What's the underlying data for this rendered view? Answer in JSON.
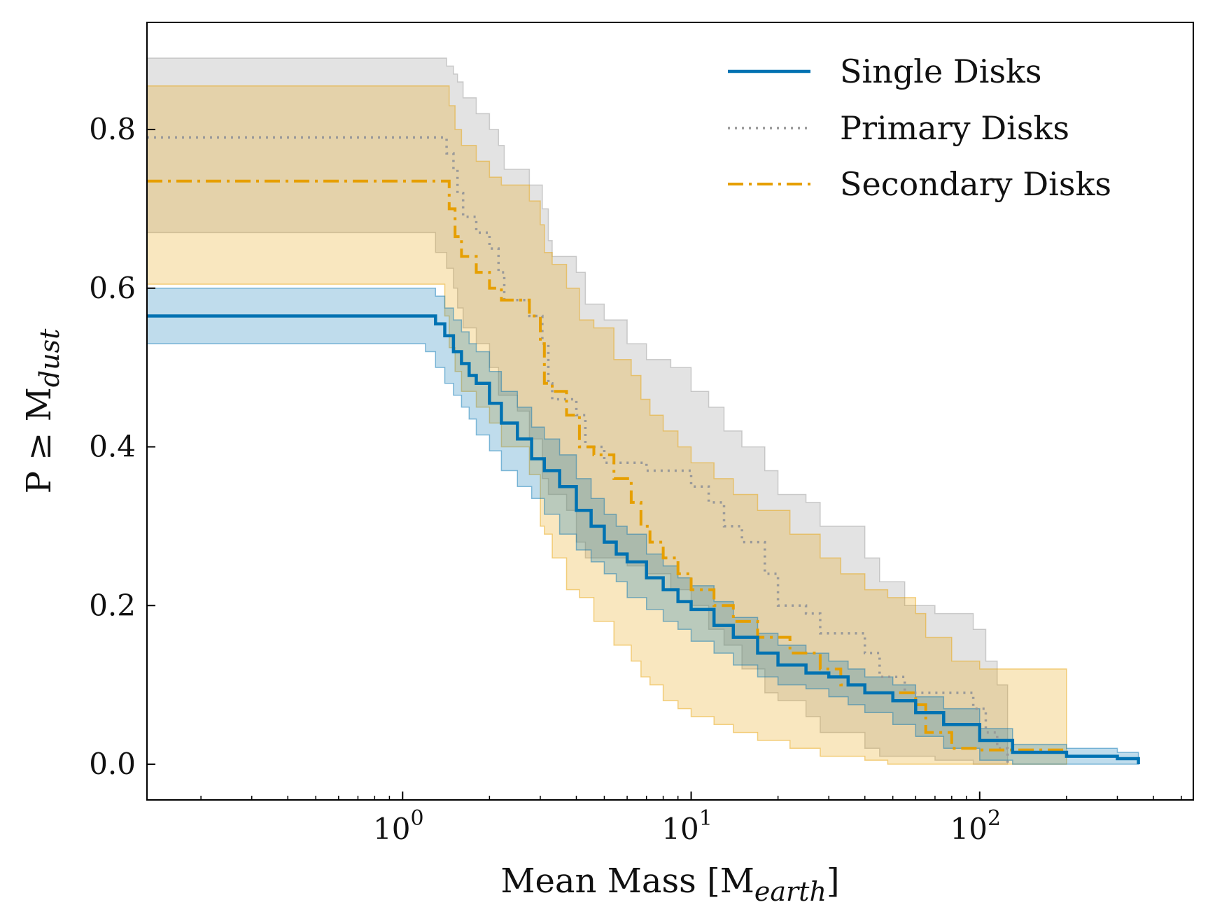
{
  "chart_data": {
    "type": "line",
    "xlabel": "Mean Mass [M",
    "xlabel_sub": "earth",
    "xlabel_close": "]",
    "ylabel": "P ≥ M",
    "ylabel_sub": "dust",
    "xscale": "log",
    "xlim": [
      0.13,
      550
    ],
    "ylim": [
      -0.045,
      0.935
    ],
    "yticks": [
      0.0,
      0.2,
      0.4,
      0.6,
      0.8
    ],
    "ytick_labels": [
      "0.0",
      "0.2",
      "0.4",
      "0.6",
      "0.8"
    ],
    "xticks": [
      1,
      10,
      100
    ],
    "xtick_labels": [
      {
        "base": "10",
        "exp": "0"
      },
      {
        "base": "10",
        "exp": "1"
      },
      {
        "base": "10",
        "exp": "2"
      }
    ],
    "legend_position": "top-right",
    "grid": false,
    "series": [
      {
        "name": "Single Disks",
        "color": "#0072b2",
        "style": "solid",
        "x": [
          0.13,
          1.2,
          1.3,
          1.4,
          1.5,
          1.6,
          1.7,
          1.8,
          2.0,
          2.2,
          2.5,
          2.8,
          3.1,
          3.5,
          4.0,
          4.5,
          5.0,
          5.5,
          6.0,
          7.0,
          8.0,
          9.0,
          10.0,
          12.0,
          14.0,
          17.0,
          20.0,
          25.0,
          30.0,
          35.0,
          40.0,
          50.0,
          60.0,
          75.0,
          100.0,
          130.0,
          200.0,
          300.0,
          355.0
        ],
        "y": [
          0.565,
          0.565,
          0.555,
          0.54,
          0.52,
          0.505,
          0.49,
          0.48,
          0.455,
          0.43,
          0.41,
          0.385,
          0.37,
          0.35,
          0.32,
          0.3,
          0.28,
          0.265,
          0.255,
          0.235,
          0.22,
          0.205,
          0.195,
          0.175,
          0.16,
          0.14,
          0.125,
          0.115,
          0.11,
          0.1,
          0.09,
          0.08,
          0.065,
          0.05,
          0.03,
          0.015,
          0.01,
          0.007,
          0.0
        ],
        "lower": [
          0.53,
          0.53,
          0.52,
          0.5,
          0.48,
          0.465,
          0.45,
          0.435,
          0.415,
          0.395,
          0.37,
          0.35,
          0.335,
          0.315,
          0.29,
          0.27,
          0.255,
          0.24,
          0.23,
          0.21,
          0.195,
          0.18,
          0.17,
          0.155,
          0.14,
          0.125,
          0.11,
          0.1,
          0.095,
          0.085,
          0.075,
          0.065,
          0.05,
          0.035,
          0.02,
          0.005,
          0.0,
          0.0,
          0.0
        ],
        "upper": [
          0.6,
          0.6,
          0.59,
          0.575,
          0.56,
          0.545,
          0.53,
          0.52,
          0.495,
          0.47,
          0.45,
          0.425,
          0.41,
          0.39,
          0.36,
          0.335,
          0.315,
          0.3,
          0.29,
          0.265,
          0.25,
          0.235,
          0.225,
          0.205,
          0.185,
          0.165,
          0.15,
          0.14,
          0.13,
          0.12,
          0.11,
          0.1,
          0.085,
          0.07,
          0.045,
          0.025,
          0.02,
          0.015,
          0.01
        ]
      },
      {
        "name": "Primary Disks",
        "color": "#999999",
        "style": "dotted",
        "x": [
          0.13,
          1.3,
          1.42,
          1.5,
          1.55,
          1.62,
          1.8,
          2.0,
          2.15,
          2.25,
          2.5,
          2.75,
          3.05,
          3.2,
          3.3,
          3.7,
          4.0,
          4.3,
          5.0,
          6.0,
          7.0,
          8.5,
          10.0,
          11.5,
          13.0,
          15.0,
          18.0,
          20.0,
          25.0,
          28.0,
          40.0,
          45.0,
          55.0,
          70.0,
          95.0,
          105.0,
          115.0,
          125.0
        ],
        "y": [
          0.79,
          0.79,
          0.77,
          0.75,
          0.72,
          0.69,
          0.67,
          0.65,
          0.62,
          0.585,
          0.585,
          0.565,
          0.53,
          0.48,
          0.46,
          0.46,
          0.44,
          0.4,
          0.38,
          0.38,
          0.37,
          0.37,
          0.35,
          0.33,
          0.3,
          0.28,
          0.24,
          0.2,
          0.19,
          0.165,
          0.14,
          0.11,
          0.09,
          0.09,
          0.07,
          0.04,
          0.02,
          0.0
        ],
        "lower": [
          0.67,
          0.67,
          0.645,
          0.625,
          0.6,
          0.575,
          0.55,
          0.53,
          0.5,
          0.465,
          0.465,
          0.445,
          0.41,
          0.36,
          0.34,
          0.34,
          0.32,
          0.28,
          0.26,
          0.26,
          0.25,
          0.24,
          0.22,
          0.2,
          0.17,
          0.15,
          0.12,
          0.09,
          0.08,
          0.06,
          0.04,
          0.02,
          0.01,
          0.01,
          0.005,
          0.0,
          0.0,
          0.0
        ],
        "upper": [
          0.89,
          0.89,
          0.88,
          0.87,
          0.86,
          0.84,
          0.82,
          0.8,
          0.78,
          0.75,
          0.75,
          0.73,
          0.7,
          0.66,
          0.64,
          0.64,
          0.62,
          0.58,
          0.56,
          0.53,
          0.51,
          0.5,
          0.47,
          0.45,
          0.42,
          0.4,
          0.37,
          0.34,
          0.33,
          0.3,
          0.26,
          0.23,
          0.2,
          0.19,
          0.17,
          0.13,
          0.1,
          0.07
        ]
      },
      {
        "name": "Secondary Disks",
        "color": "#e69f00",
        "style": "dashdot",
        "x": [
          0.13,
          1.4,
          1.45,
          1.52,
          1.6,
          1.8,
          2.0,
          2.2,
          2.75,
          3.0,
          3.1,
          3.3,
          3.7,
          4.1,
          4.6,
          5.4,
          6.2,
          6.7,
          7.2,
          8.0,
          9.0,
          10.0,
          12.0,
          14.0,
          17.0,
          22.0,
          28.0,
          33.0,
          40.0,
          48.0,
          60.0,
          65.0,
          80.0,
          100.0,
          200.0
        ],
        "y": [
          0.735,
          0.735,
          0.7,
          0.665,
          0.64,
          0.62,
          0.6,
          0.585,
          0.565,
          0.53,
          0.48,
          0.47,
          0.44,
          0.4,
          0.39,
          0.36,
          0.33,
          0.3,
          0.28,
          0.26,
          0.24,
          0.22,
          0.2,
          0.18,
          0.16,
          0.14,
          0.12,
          0.1,
          0.09,
          0.09,
          0.075,
          0.04,
          0.02,
          0.018,
          0.018
        ],
        "lower": [
          0.605,
          0.605,
          0.565,
          0.525,
          0.495,
          0.47,
          0.45,
          0.43,
          0.4,
          0.365,
          0.3,
          0.29,
          0.26,
          0.22,
          0.21,
          0.18,
          0.15,
          0.13,
          0.11,
          0.1,
          0.08,
          0.07,
          0.06,
          0.05,
          0.04,
          0.03,
          0.02,
          0.01,
          0.01,
          0.005,
          0.0,
          0.0,
          0.0,
          0.0,
          0.0
        ],
        "upper": [
          0.855,
          0.855,
          0.83,
          0.8,
          0.78,
          0.76,
          0.74,
          0.73,
          0.71,
          0.68,
          0.645,
          0.63,
          0.6,
          0.56,
          0.55,
          0.51,
          0.49,
          0.46,
          0.44,
          0.42,
          0.4,
          0.38,
          0.36,
          0.34,
          0.32,
          0.29,
          0.26,
          0.24,
          0.22,
          0.21,
          0.19,
          0.16,
          0.13,
          0.12,
          0.12
        ]
      }
    ]
  }
}
